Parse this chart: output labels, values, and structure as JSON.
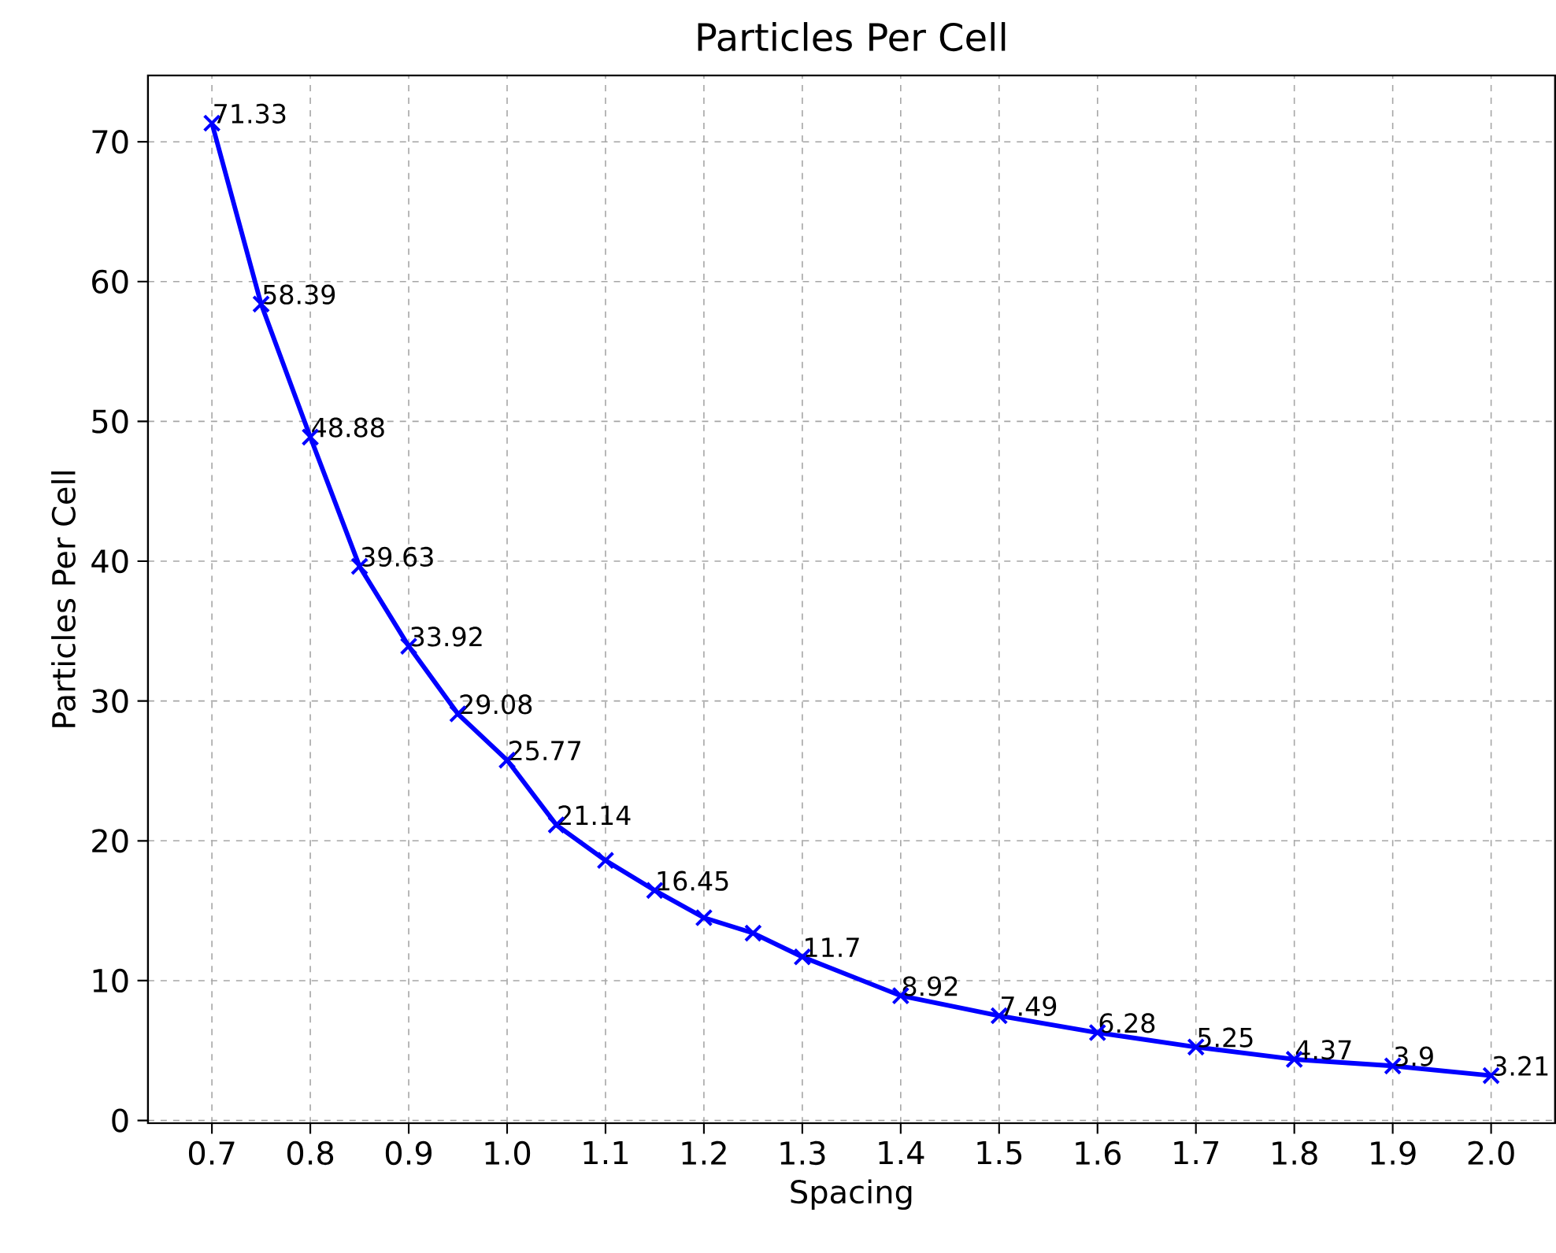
{
  "chart_data": {
    "type": "line",
    "title": "Particles Per Cell",
    "xlabel": "Spacing",
    "ylabel": "Particles Per Cell",
    "x": [
      0.7,
      0.75,
      0.8,
      0.85,
      0.9,
      0.95,
      1.0,
      1.05,
      1.1,
      1.15,
      1.2,
      1.25,
      1.3,
      1.4,
      1.5,
      1.6,
      1.7,
      1.8,
      1.9,
      2.0
    ],
    "series": [
      {
        "color": "#0000ff",
        "values": [
          71.33,
          58.39,
          48.88,
          39.63,
          33.92,
          29.08,
          25.77,
          21.14,
          18.6,
          16.45,
          14.5,
          13.4,
          11.7,
          8.92,
          7.49,
          6.28,
          5.25,
          4.37,
          3.9,
          3.21
        ],
        "value_labels": [
          "71.33",
          "58.39",
          "48.88",
          "39.63",
          "33.92",
          "29.08",
          "25.77",
          "21.14",
          null,
          "16.45",
          null,
          null,
          "11.7",
          "8.92",
          "7.49",
          "6.28",
          "5.25",
          "4.37",
          "3.9",
          "3.21"
        ]
      }
    ],
    "xlim": [
      0.635,
      2.065
    ],
    "ylim": [
      -0.2,
      74.74
    ],
    "xticks": [
      {
        "value": 0.7,
        "label": "0.7"
      },
      {
        "value": 0.8,
        "label": "0.8"
      },
      {
        "value": 0.9,
        "label": "0.9"
      },
      {
        "value": 1.0,
        "label": "1.0"
      },
      {
        "value": 1.1,
        "label": "1.1"
      },
      {
        "value": 1.2,
        "label": "1.2"
      },
      {
        "value": 1.3,
        "label": "1.3"
      },
      {
        "value": 1.4,
        "label": "1.4"
      },
      {
        "value": 1.5,
        "label": "1.5"
      },
      {
        "value": 1.6,
        "label": "1.6"
      },
      {
        "value": 1.7,
        "label": "1.7"
      },
      {
        "value": 1.8,
        "label": "1.8"
      },
      {
        "value": 1.9,
        "label": "1.9"
      },
      {
        "value": 2.0,
        "label": "2.0"
      }
    ],
    "yticks": [
      0,
      10,
      20,
      30,
      40,
      50,
      60,
      70
    ],
    "grid": true,
    "marker": "cross",
    "line_style": "solid"
  }
}
